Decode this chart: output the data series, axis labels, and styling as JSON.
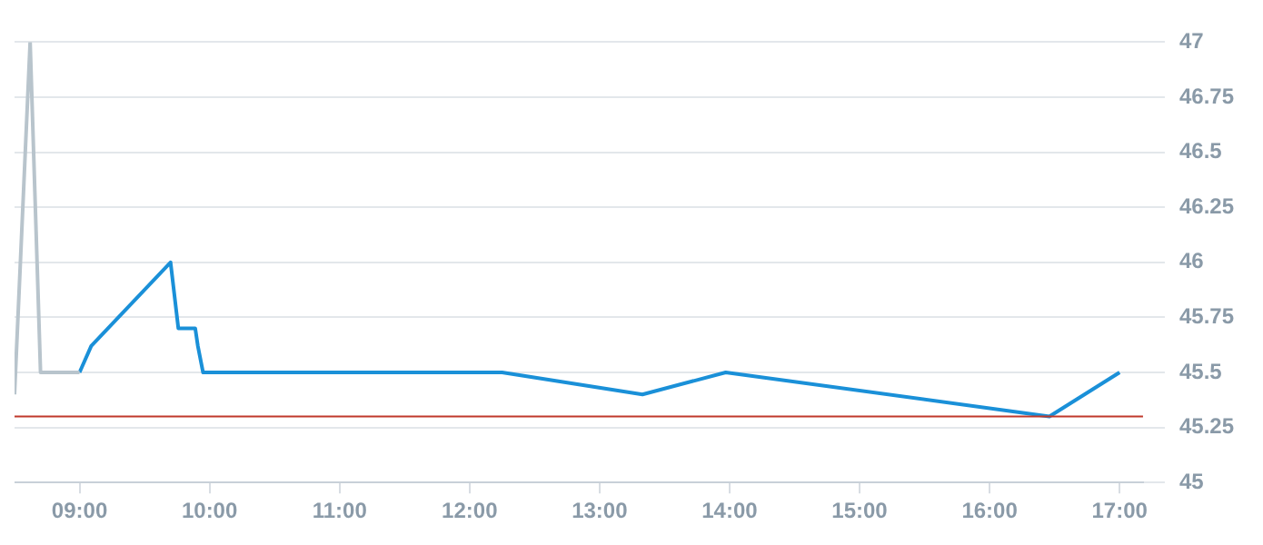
{
  "chart_data": {
    "type": "line",
    "xlim": [
      8.5,
      17.18
    ],
    "xticks": [
      {
        "value": 9,
        "label": "09:00"
      },
      {
        "value": 10,
        "label": "10:00"
      },
      {
        "value": 11,
        "label": "11:00"
      },
      {
        "value": 12,
        "label": "12:00"
      },
      {
        "value": 13,
        "label": "13:00"
      },
      {
        "value": 14,
        "label": "14:00"
      },
      {
        "value": 15,
        "label": "15:00"
      },
      {
        "value": 16,
        "label": "16:00"
      },
      {
        "value": 17,
        "label": "17:00"
      }
    ],
    "ylim": [
      45,
      47
    ],
    "yticks": [
      45,
      45.25,
      45.5,
      45.75,
      46,
      46.25,
      46.5,
      46.75,
      47
    ],
    "grid": "y",
    "legend": false,
    "marker": "none",
    "line_style": "solid",
    "series": [
      {
        "color": "#b8c4cc",
        "x": [
          8.5,
          8.62,
          8.7,
          9.0
        ],
        "values": [
          45.4,
          47,
          45.5,
          45.5
        ]
      },
      {
        "color": "#1a90d8",
        "x": [
          9.0,
          9.09,
          9.7,
          9.76,
          9.89,
          9.91,
          9.95,
          12.25,
          13.33,
          13.97,
          16.46,
          17.0
        ],
        "values": [
          45.5,
          45.62,
          46.0,
          45.7,
          45.7,
          45.62,
          45.5,
          45.5,
          45.4,
          45.5,
          45.3,
          45.5
        ]
      }
    ],
    "ref_lines": [
      {
        "axis": "y",
        "value": 45.3,
        "color": "#c0392b"
      }
    ]
  }
}
